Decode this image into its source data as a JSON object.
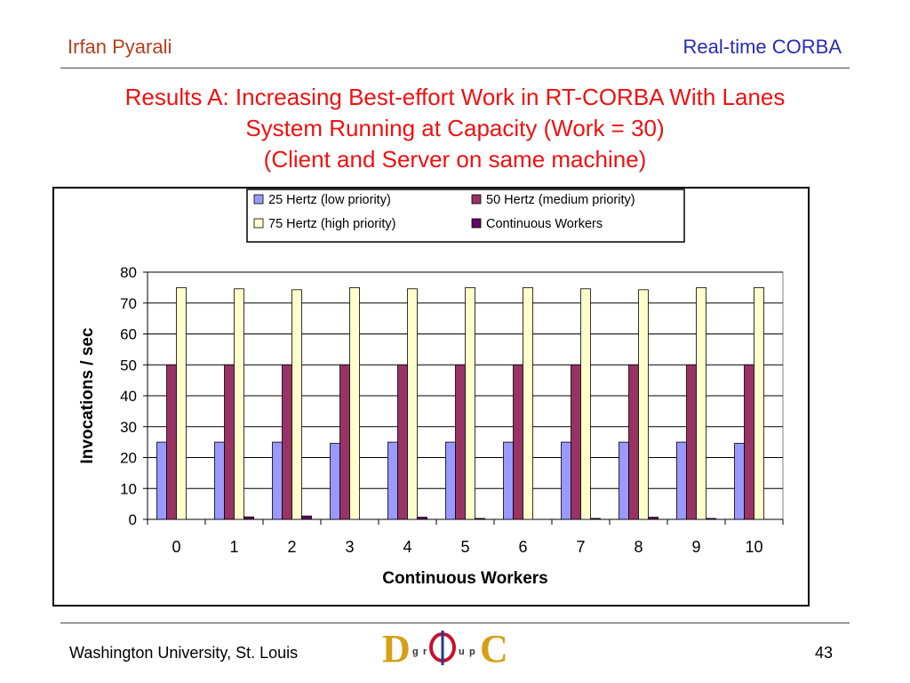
{
  "header": {
    "author": "Irfan Pyarali",
    "topic": "Real-time CORBA"
  },
  "title_lines": [
    "Results A: Increasing Best-effort Work in RT-CORBA With Lanes",
    "System Running at Capacity (Work = 30)",
    "(Client and Server on same machine)"
  ],
  "footer": {
    "institution": "Washington University, St. Louis",
    "page_number": "43"
  },
  "logo": {
    "name": "doc-group-logo",
    "letters": [
      "D",
      "g",
      "r",
      "O",
      "u",
      "p",
      "C"
    ]
  },
  "colors": {
    "header_left": "#b3401a",
    "header_right": "#2a2ab5",
    "title": "#ee1111"
  },
  "chart_data": {
    "type": "bar",
    "title": "",
    "xlabel": "Continuous Workers",
    "ylabel": "Invocations / sec",
    "ylim": [
      0,
      80
    ],
    "yticks": [
      0,
      10,
      20,
      30,
      40,
      50,
      60,
      70,
      80
    ],
    "grid": true,
    "legend_position": "top",
    "categories": [
      "0",
      "1",
      "2",
      "3",
      "4",
      "5",
      "6",
      "7",
      "8",
      "9",
      "10"
    ],
    "series": [
      {
        "name": "25 Hertz (low priority)",
        "color": "#9999ff",
        "values": [
          25,
          25,
          25,
          24.6,
          25,
          25,
          25,
          25,
          25,
          25,
          24.6
        ]
      },
      {
        "name": "50 Hertz (medium priority)",
        "color": "#993366",
        "values": [
          50,
          50,
          50,
          50,
          50,
          50,
          50,
          50,
          50,
          50,
          50
        ]
      },
      {
        "name": "75 Hertz (high priority)",
        "color": "#ffffcc",
        "values": [
          75,
          74.6,
          74.3,
          75,
          74.6,
          75,
          75,
          74.6,
          74.3,
          75,
          75
        ]
      },
      {
        "name": "Continuous Workers",
        "color": "#660066",
        "values": [
          0,
          0.8,
          1.1,
          0,
          0.7,
          0.3,
          0,
          0.3,
          0.7,
          0.3,
          0
        ]
      }
    ]
  }
}
